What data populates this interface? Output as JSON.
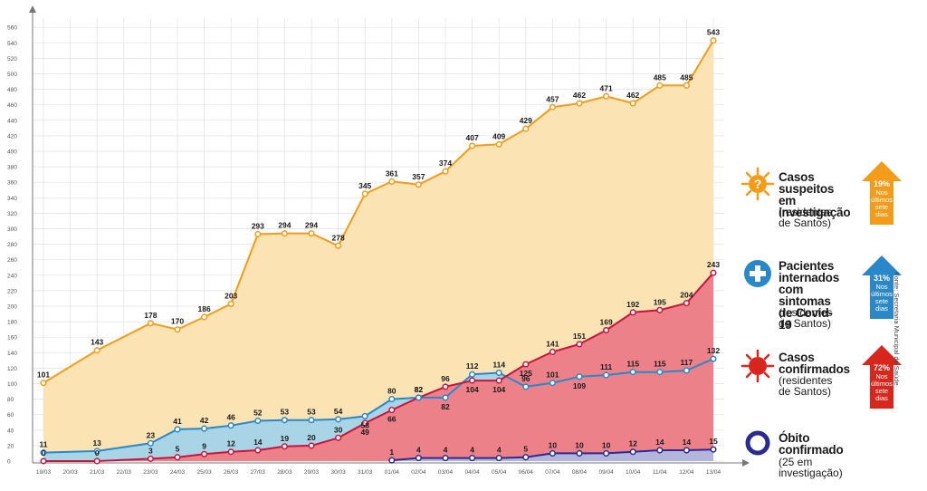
{
  "chart_data": {
    "type": "area",
    "categories": [
      "19/03",
      "20/03",
      "21/03",
      "22/03",
      "23/03",
      "24/03",
      "25/03",
      "26/03",
      "27/03",
      "28/03",
      "29/03",
      "30/03",
      "31/03",
      "01/04",
      "02/04",
      "03/04",
      "04/04",
      "05/04",
      "06/04",
      "07/04",
      "08/04",
      "09/04",
      "10/04",
      "11/04",
      "12/04",
      "13/04"
    ],
    "yticks": [
      0,
      20,
      40,
      60,
      80,
      100,
      120,
      140,
      160,
      180,
      200,
      220,
      240,
      260,
      280,
      300,
      320,
      340,
      360,
      380,
      400,
      420,
      440,
      460,
      480,
      500,
      520,
      540,
      560
    ],
    "ylim": [
      0,
      570
    ],
    "grid": true,
    "series": [
      {
        "key": "suspeitos",
        "x": [
          "19/03",
          "21/03",
          "23/03",
          "24/03",
          "25/03",
          "26/03",
          "27/03",
          "28/03",
          "29/03",
          "30/03",
          "31/03",
          "01/04",
          "02/04",
          "03/04",
          "04/04",
          "05/04",
          "06/04",
          "07/04",
          "08/04",
          "09/04",
          "10/04",
          "11/04",
          "12/04",
          "13/04"
        ],
        "values": [
          101,
          143,
          178,
          170,
          186,
          203,
          293,
          294,
          294,
          278,
          345,
          361,
          357,
          374,
          407,
          409,
          429,
          457,
          462,
          471,
          462,
          485,
          485,
          543
        ],
        "line": "#f39c19",
        "fill": "#fbe3b4",
        "label_pos": "above"
      },
      {
        "key": "confirmados",
        "x": [
          "19/03",
          "21/03",
          "23/03",
          "24/03",
          "25/03",
          "26/03",
          "27/03",
          "28/03",
          "29/03",
          "30/03",
          "31/03",
          "01/04",
          "02/04",
          "03/04",
          "04/04",
          "05/04",
          "06/04",
          "07/04",
          "08/04",
          "09/04",
          "10/04",
          "11/04",
          "12/04",
          "13/04"
        ],
        "values": [
          0,
          0,
          3,
          5,
          9,
          12,
          14,
          19,
          20,
          30,
          49,
          66,
          82,
          96,
          104,
          104,
          125,
          141,
          151,
          169,
          192,
          195,
          204,
          243
        ],
        "line": "#c8143c",
        "fill": "#ec8189",
        "label_pos": "above"
      },
      {
        "key": "internados",
        "x": [
          "19/03",
          "21/03",
          "23/03",
          "24/03",
          "25/03",
          "26/03",
          "27/03",
          "28/03",
          "29/03",
          "30/03",
          "31/03",
          "01/04",
          "02/04",
          "03/04",
          "04/04",
          "05/04",
          "06/04",
          "07/04",
          "08/04",
          "09/04",
          "10/04",
          "11/04",
          "12/04",
          "13/04"
        ],
        "values": [
          11,
          13,
          23,
          41,
          42,
          46,
          52,
          53,
          53,
          54,
          58,
          80,
          82,
          82,
          112,
          114,
          96,
          101,
          109,
          111,
          115,
          115,
          117,
          132
        ],
        "line": "#2a87c8",
        "fill": "#a8d4e6",
        "label_pos": "mixed"
      },
      {
        "key": "obito",
        "x": [
          "01/04",
          "02/04",
          "03/04",
          "04/04",
          "05/04",
          "06/04",
          "07/04",
          "08/04",
          "09/04",
          "10/04",
          "11/04",
          "12/04",
          "13/04"
        ],
        "values": [
          1,
          4,
          4,
          4,
          4,
          5,
          10,
          10,
          10,
          12,
          14,
          14,
          15
        ],
        "line": "#2b2b8f",
        "fill": "#b3b5dc",
        "label_pos": "above"
      }
    ]
  },
  "legend": [
    {
      "key": "suspeitos",
      "title": "Casos\nsuspeitos em\ninvestigação",
      "subtitle": "(residentes\nde Santos)",
      "icon": "question-virus-icon",
      "color": "#f39c19",
      "pct": "19%",
      "note": "Nos\núltimos\nsete\ndias"
    },
    {
      "key": "internados",
      "title": "Pacientes\ninternados\ncom sintomas\nde Covid-19",
      "subtitle": "(residentes\nde Santos)",
      "icon": "plus-circle-icon",
      "color": "#2a87c8",
      "pct": "31%",
      "note": "Nos\núltimos\nsete\ndias"
    },
    {
      "key": "confirmados",
      "title": "Casos\nconfirmados",
      "subtitle": "(residentes\nde Santos)",
      "icon": "virus-icon",
      "color": "#d9261c",
      "pct": "72%",
      "note": "Nos\núltimos\nsete\ndias"
    },
    {
      "key": "obito",
      "title": "Óbito\nconfirmado",
      "subtitle": "(25 em investigação)",
      "icon": "ring-icon",
      "color": "#2b2b8f",
      "pct": "",
      "note": ""
    }
  ],
  "source": "Fonte: Secretaria Municipal de Saúde"
}
